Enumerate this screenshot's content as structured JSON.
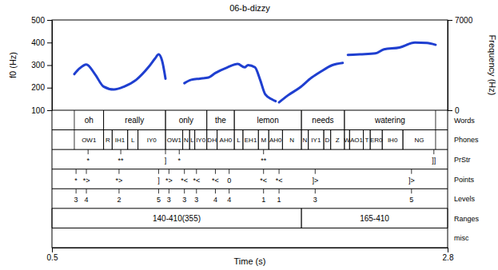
{
  "chart_data": {
    "type": "line",
    "title": "06-b-dizzy",
    "x_label": "Time (s)",
    "y_label": "f0 (Hz)",
    "y2_label": "Frequency (Hz)",
    "xlim": [
      0.5,
      2.8
    ],
    "xticks": [
      0.5,
      2.8
    ],
    "ylim": [
      100,
      500
    ],
    "yticks": [
      100,
      200,
      300,
      400,
      500
    ],
    "y2lim": [
      0,
      7000
    ],
    "y2ticks": [
      0,
      7000
    ],
    "x": [
      0.63,
      0.66,
      0.7,
      0.75,
      0.8,
      0.86,
      0.92,
      0.99,
      1.06,
      1.1,
      1.12,
      1.14,
      1.16,
      1.21,
      1.27,
      1.31,
      1.36,
      1.41,
      1.45,
      1.52,
      1.58,
      1.62,
      1.64,
      1.68,
      1.71,
      1.74,
      1.78,
      1.8,
      1.81,
      1.82,
      1.87,
      1.94,
      2.01,
      2.06,
      2.13,
      2.19,
      2.2,
      2.22,
      2.29,
      2.38,
      2.43,
      2.52,
      2.61,
      2.68,
      2.73
    ],
    "series": [
      {
        "color": "#1f3fd0",
        "values": [
          260,
          285,
          303,
          260,
          205,
          192,
          205,
          235,
          290,
          330,
          348,
          320,
          240,
          null,
          220,
          235,
          240,
          245,
          265,
          290,
          305,
          290,
          300,
          290,
          235,
          170,
          148,
          140,
          null,
          135,
          165,
          200,
          245,
          270,
          300,
          310,
          null,
          345,
          348,
          352,
          370,
          378,
          400,
          398,
          390
        ]
      }
    ],
    "tiers": [
      {
        "name": "Words",
        "intervals": [
          {
            "label": "oh",
            "start": 0.63,
            "end": 0.8
          },
          {
            "label": "really",
            "start": 0.8,
            "end": 1.16
          },
          {
            "label": "only",
            "start": 1.16,
            "end": 1.4
          },
          {
            "label": "the",
            "start": 1.4,
            "end": 1.56
          },
          {
            "label": "lemon",
            "start": 1.56,
            "end": 1.95
          },
          {
            "label": "needs",
            "start": 1.95,
            "end": 2.2
          },
          {
            "label": "watering",
            "start": 2.2,
            "end": 2.73
          }
        ]
      },
      {
        "name": "Phones",
        "intervals": [
          {
            "label": "OW1",
            "start": 0.63,
            "end": 0.8
          },
          {
            "label": "R",
            "start": 0.8,
            "end": 0.85
          },
          {
            "label": "IH1",
            "start": 0.85,
            "end": 0.94
          },
          {
            "label": "L",
            "start": 0.94,
            "end": 1.0
          },
          {
            "label": "IY0",
            "start": 1.0,
            "end": 1.16
          },
          {
            "label": "OW1",
            "start": 1.16,
            "end": 1.26
          },
          {
            "label": "N",
            "start": 1.26,
            "end": 1.3
          },
          {
            "label": "L",
            "start": 1.3,
            "end": 1.33
          },
          {
            "label": "IY0",
            "start": 1.33,
            "end": 1.4
          },
          {
            "label": "DH",
            "start": 1.4,
            "end": 1.46
          },
          {
            "label": "AH0",
            "start": 1.46,
            "end": 1.56
          },
          {
            "label": "L",
            "start": 1.56,
            "end": 1.61
          },
          {
            "label": "EH1",
            "start": 1.61,
            "end": 1.7
          },
          {
            "label": "M",
            "start": 1.7,
            "end": 1.76
          },
          {
            "label": "AH0",
            "start": 1.76,
            "end": 1.84
          },
          {
            "label": "N",
            "start": 1.84,
            "end": 1.95
          },
          {
            "label": "N",
            "start": 1.95,
            "end": 1.99
          },
          {
            "label": "IY1",
            "start": 1.99,
            "end": 2.08
          },
          {
            "label": "D",
            "start": 2.08,
            "end": 2.12
          },
          {
            "label": "Z",
            "start": 2.12,
            "end": 2.2
          },
          {
            "label": "W",
            "start": 2.2,
            "end": 2.23
          },
          {
            "label": "AO1",
            "start": 2.23,
            "end": 2.31
          },
          {
            "label": "T",
            "start": 2.31,
            "end": 2.35
          },
          {
            "label": "ER0",
            "start": 2.35,
            "end": 2.42
          },
          {
            "label": "IH0",
            "start": 2.42,
            "end": 2.54
          },
          {
            "label": "NG",
            "start": 2.54,
            "end": 2.73
          }
        ]
      },
      {
        "name": "PrStr",
        "points": [
          {
            "label": "*",
            "time": 0.71
          },
          {
            "label": "**",
            "time": 0.9
          },
          {
            "label": "]",
            "time": 1.16
          },
          {
            "label": "*",
            "time": 1.24
          },
          {
            "label": "**",
            "time": 1.73
          },
          {
            "label": "]]",
            "time": 2.72
          }
        ]
      },
      {
        "name": "Points",
        "points": [
          {
            "label": "*",
            "time": 0.64
          },
          {
            "label": "*>",
            "time": 0.7
          },
          {
            "label": "*>",
            "time": 0.89
          },
          {
            "label": "]",
            "time": 1.12
          },
          {
            "label": "*>",
            "time": 1.18
          },
          {
            "label": "*<",
            "time": 1.27
          },
          {
            "label": "*<",
            "time": 1.34
          },
          {
            "label": "*<",
            "time": 1.45
          },
          {
            "label": "0",
            "time": 1.53
          },
          {
            "label": "*<",
            "time": 1.73
          },
          {
            "label": "*<",
            "time": 1.82
          },
          {
            "label": "]>",
            "time": 2.03
          },
          {
            "label": "]>",
            "time": 2.59
          }
        ]
      },
      {
        "name": "Levels",
        "points": [
          {
            "value": 3,
            "time": 0.64
          },
          {
            "value": 4,
            "time": 0.7
          },
          {
            "value": 2,
            "time": 0.89
          },
          {
            "value": 5,
            "time": 1.12
          },
          {
            "value": 3,
            "time": 1.18
          },
          {
            "value": 3,
            "time": 1.27
          },
          {
            "value": 3,
            "time": 1.34
          },
          {
            "value": 4,
            "time": 1.45
          },
          {
            "value": 4,
            "time": 1.53
          },
          {
            "value": 1,
            "time": 1.73
          },
          {
            "value": 1,
            "time": 1.82
          },
          {
            "value": 3,
            "time": 2.03
          },
          {
            "value": 5,
            "time": 2.59
          }
        ]
      },
      {
        "name": "Ranges",
        "intervals": [
          {
            "label": "140-410(355)",
            "start": 0.5,
            "end": 1.95
          },
          {
            "label": "165-410",
            "start": 1.95,
            "end": 2.8
          }
        ]
      },
      {
        "name": "misc",
        "intervals": []
      }
    ]
  }
}
